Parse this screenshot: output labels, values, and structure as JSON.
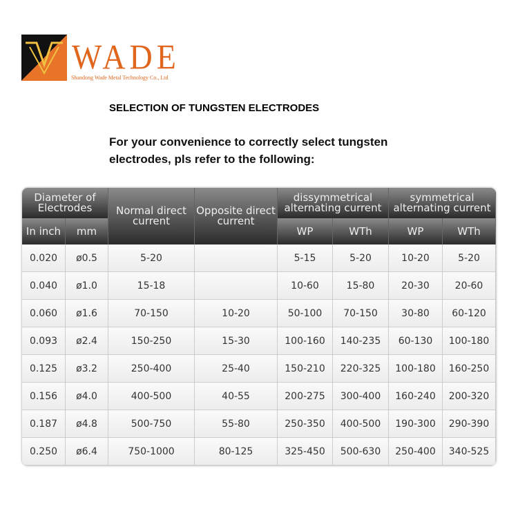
{
  "logo": {
    "name": "WADE",
    "company": "Shandong Wade Metal Technology Co., Ltd",
    "colors": {
      "orange": "#e0661e",
      "black": "#111111"
    }
  },
  "title": "SELECTION OF TUNGSTEN ELECTRODES",
  "intro": "For your convenience to correctly select tungsten electrodes, pls refer to the following:",
  "table": {
    "headers": {
      "diameter": "Diameter of Electrodes",
      "inch": "In inch",
      "mm": "mm",
      "normal": "Normal direct current",
      "opposite": "Opposite direct current",
      "dissym": "dissymmetrical alternating current",
      "sym": "symmetrical alternating current",
      "wp1": "WP",
      "wth1": "WTh",
      "wp2": "WP",
      "wth2": "WTh"
    },
    "rows": [
      [
        "0.020",
        "ø0.5",
        "5-20",
        "",
        "5-15",
        "5-20",
        "10-20",
        "5-20"
      ],
      [
        "0.040",
        "ø1.0",
        "15-18",
        "",
        "10-60",
        "15-80",
        "20-30",
        "20-60"
      ],
      [
        "0.060",
        "ø1.6",
        "70-150",
        "10-20",
        "50-100",
        "70-150",
        "30-80",
        "60-120"
      ],
      [
        "0.093",
        "ø2.4",
        "150-250",
        "15-30",
        "100-160",
        "140-235",
        "60-130",
        "100-180"
      ],
      [
        "0.125",
        "ø3.2",
        "250-400",
        "25-40",
        "150-210",
        "220-325",
        "100-180",
        "160-250"
      ],
      [
        "0.156",
        "ø4.0",
        "400-500",
        "40-55",
        "200-275",
        "300-400",
        "160-240",
        "200-320"
      ],
      [
        "0.187",
        "ø4.8",
        "500-750",
        "55-80",
        "250-350",
        "400-500",
        "190-300",
        "290-390"
      ],
      [
        "0.250",
        "ø6.4",
        "750-1000",
        "80-125",
        "325-450",
        "500-630",
        "250-400",
        "340-525"
      ]
    ]
  }
}
